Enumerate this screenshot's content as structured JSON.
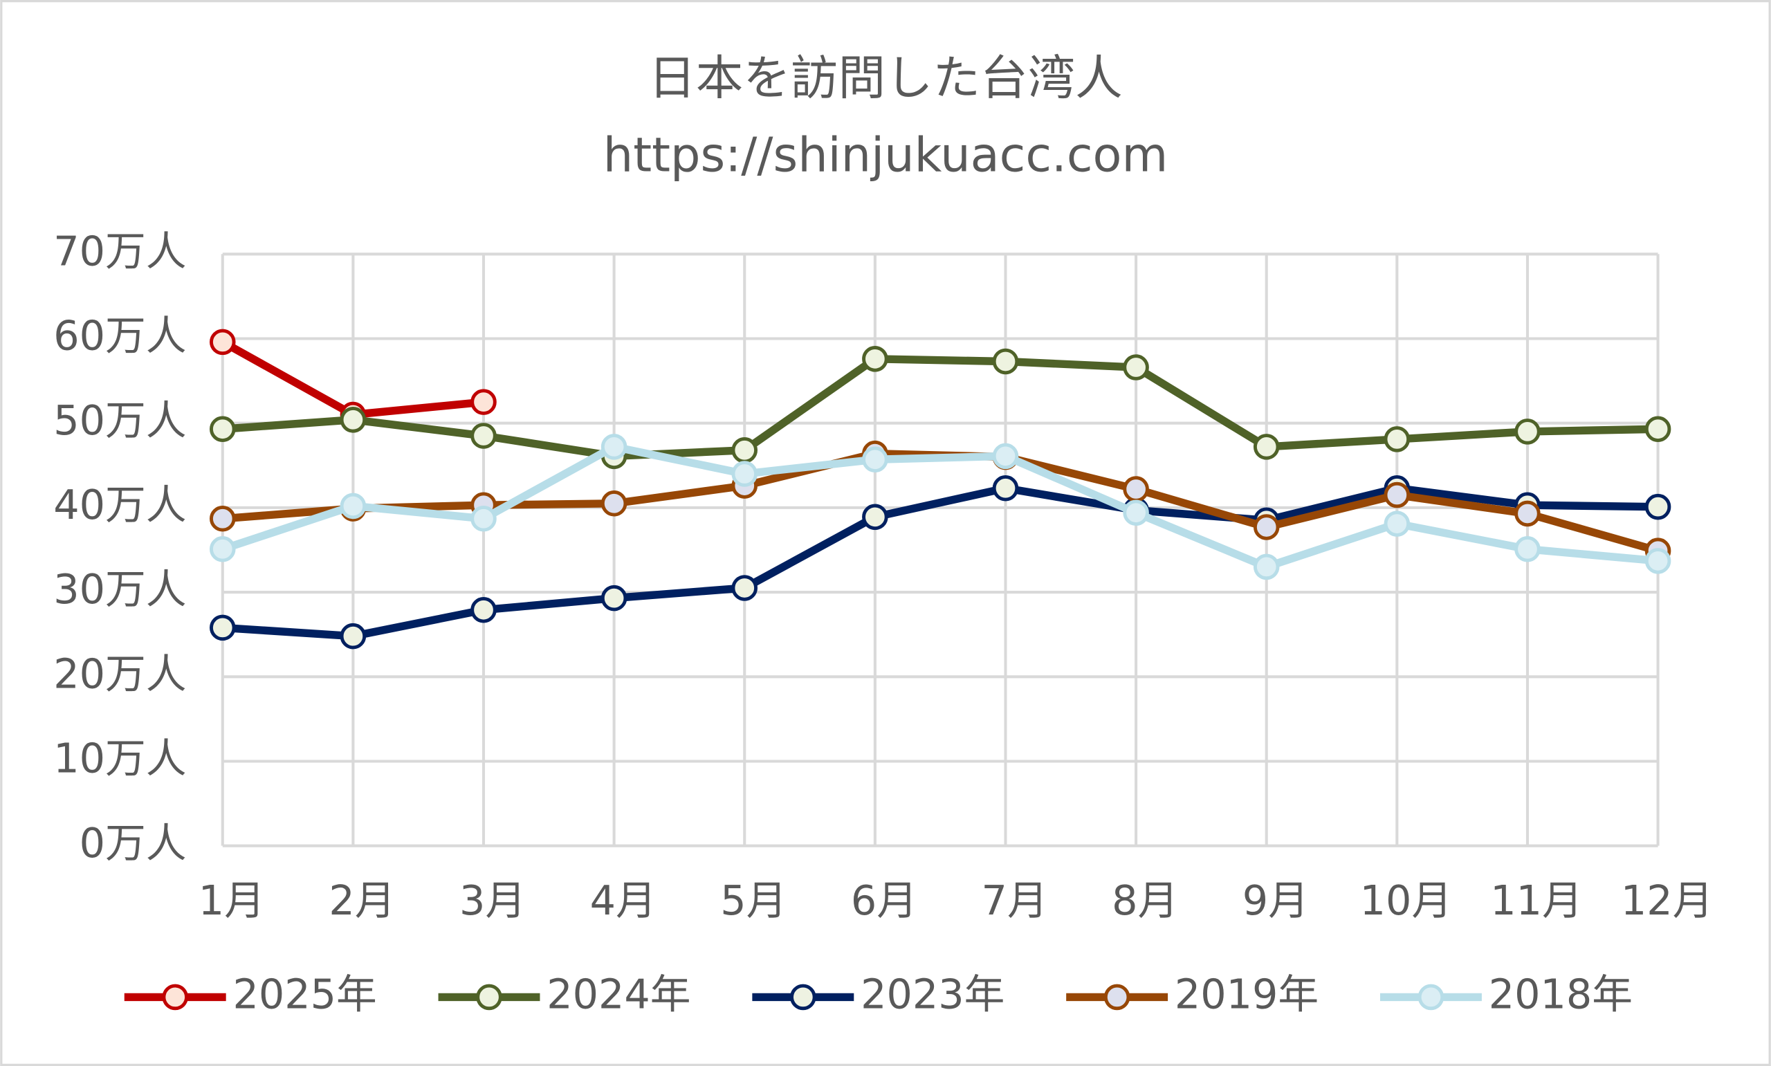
{
  "chart_data": {
    "type": "line",
    "title": "日本を訪問した台湾人",
    "subtitle": "https://shinjukuacc.com",
    "categories": [
      "1月",
      "2月",
      "3月",
      "4月",
      "5月",
      "6月",
      "7月",
      "8月",
      "9月",
      "10月",
      "11月",
      "12月"
    ],
    "ylim": [
      0,
      70
    ],
    "yticks": [
      {
        "value": 0,
        "label": "0万人"
      },
      {
        "value": 10,
        "label": "10万人"
      },
      {
        "value": 20,
        "label": "20万人"
      },
      {
        "value": 30,
        "label": "30万人"
      },
      {
        "value": 40,
        "label": "40万人"
      },
      {
        "value": 50,
        "label": "50万人"
      },
      {
        "value": 60,
        "label": "60万人"
      },
      {
        "value": 70,
        "label": "70万人"
      }
    ],
    "grid": true,
    "legend": "bottom",
    "series": [
      {
        "name": "2025年",
        "color": "#c00000",
        "marker_color": "#fde4d8",
        "values": [
          59.6,
          51.0,
          52.5,
          null,
          null,
          null,
          null,
          null,
          null,
          null,
          null,
          null
        ]
      },
      {
        "name": "2024年",
        "color": "#4f6228",
        "marker_color": "#eef3e0",
        "values": [
          49.3,
          50.4,
          48.5,
          46.1,
          46.8,
          57.6,
          57.3,
          56.6,
          47.2,
          48.1,
          49.0,
          49.3
        ]
      },
      {
        "name": "2023年",
        "color": "#002060",
        "marker_color": "#eef2e2",
        "values": [
          25.8,
          24.8,
          27.9,
          29.3,
          30.5,
          38.9,
          42.3,
          39.7,
          38.5,
          42.3,
          40.3,
          40.1
        ]
      },
      {
        "name": "2019年",
        "color": "#974706",
        "marker_color": "#dde0ee",
        "values": [
          38.7,
          39.9,
          40.3,
          40.5,
          42.6,
          46.4,
          46.0,
          42.2,
          37.7,
          41.5,
          39.3,
          34.9
        ]
      },
      {
        "name": "2018年",
        "color": "#b7dde8",
        "marker_color": "#dbeef4",
        "values": [
          35.1,
          40.2,
          38.7,
          47.2,
          44.0,
          45.7,
          46.1,
          39.4,
          33.0,
          38.1,
          35.1,
          33.7
        ]
      }
    ]
  }
}
